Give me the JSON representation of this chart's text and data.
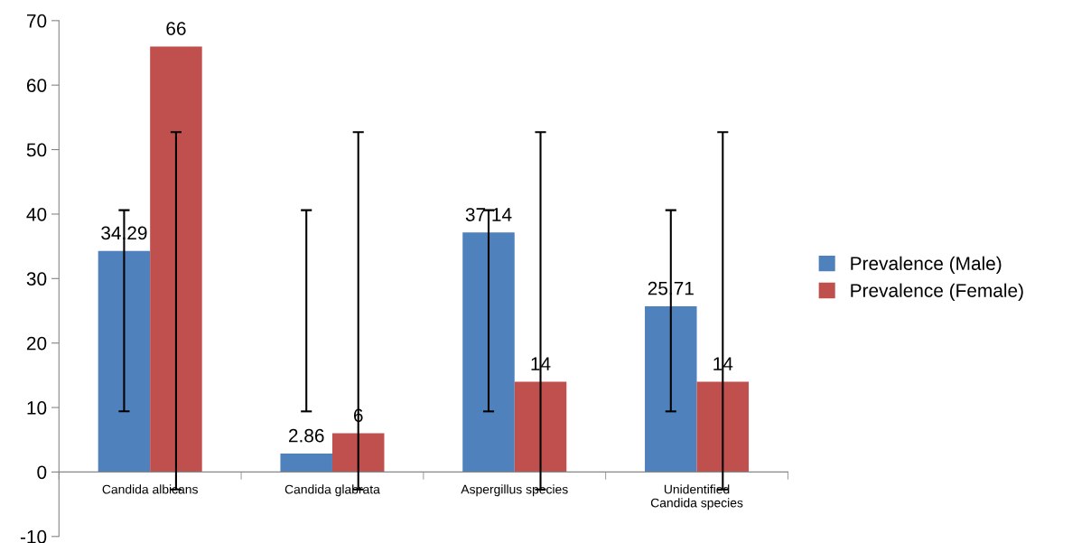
{
  "chart_data": {
    "type": "bar",
    "categories": [
      "Candida albicans",
      "Candida glabrata",
      "Aspergillus species",
      "Unidentified\nCandida species"
    ],
    "series": [
      {
        "name": "Prevalence (Male)",
        "color": "#4f81bd",
        "values": [
          34.29,
          2.86,
          37.14,
          25.71
        ],
        "errors": [
          [
            9.4,
            40.6
          ],
          [
            9.4,
            40.6
          ],
          [
            9.4,
            40.6
          ],
          [
            9.4,
            40.6
          ]
        ]
      },
      {
        "name": "Prevalence (Female)",
        "color": "#c0504d",
        "values": [
          66,
          6,
          14,
          14
        ],
        "errors": [
          [
            -2.7,
            52.7
          ],
          [
            -2.7,
            52.7
          ],
          [
            -2.7,
            52.7
          ],
          [
            -2.7,
            52.7
          ]
        ]
      }
    ],
    "ylim": [
      -10,
      70
    ],
    "yticks": [
      -10,
      0,
      10,
      20,
      30,
      40,
      50,
      60,
      70
    ],
    "data_labels": true,
    "legend": "right",
    "grid": false
  }
}
